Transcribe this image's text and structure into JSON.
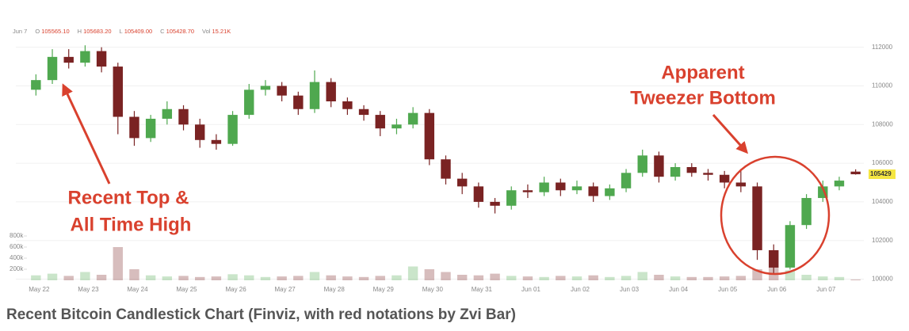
{
  "chart_data": {
    "type": "candlestick",
    "header": [
      {
        "key": "",
        "value": "Jun 7"
      },
      {
        "key": "O",
        "value": "105565.10"
      },
      {
        "key": "H",
        "value": "105683.20"
      },
      {
        "key": "L",
        "value": "105409.00"
      },
      {
        "key": "C",
        "value": "105428.70"
      },
      {
        "key": "Vol",
        "value": "15.21K"
      }
    ],
    "categories": [
      "May 22",
      null,
      null,
      "May 23",
      null,
      null,
      "May 24",
      null,
      null,
      "May 25",
      null,
      null,
      "May 26",
      null,
      null,
      "May 27",
      null,
      null,
      "May 28",
      null,
      null,
      "May 29",
      null,
      null,
      "May 30",
      null,
      null,
      "May 31",
      null,
      null,
      "Jun 01",
      null,
      null,
      "Jun 02",
      null,
      null,
      "Jun 03",
      null,
      null,
      "Jun 04",
      null,
      null,
      "Jun 05",
      null,
      null,
      "Jun 06",
      null,
      null,
      "Jun 07",
      null,
      null
    ],
    "open": [
      109800,
      110300,
      111500,
      111200,
      111800,
      111000,
      108400,
      107300,
      108300,
      108800,
      108000,
      107200,
      107000,
      108500,
      109800,
      110000,
      109500,
      108800,
      110200,
      109200,
      108800,
      108500,
      107800,
      108000,
      108600,
      106200,
      105200,
      104800,
      104000,
      103800,
      104600,
      104500,
      105000,
      104600,
      104800,
      104300,
      104700,
      105500,
      106400,
      105300,
      105800,
      105500,
      105400,
      105000,
      104800,
      101500,
      100600,
      102800,
      104200,
      104800,
      105565.1
    ],
    "high": [
      110600,
      111900,
      111900,
      112100,
      112000,
      111200,
      108700,
      108500,
      109200,
      109000,
      108300,
      107500,
      108700,
      110100,
      110300,
      110200,
      109700,
      110800,
      110400,
      109400,
      109000,
      108700,
      108300,
      108900,
      108800,
      106400,
      105500,
      105000,
      104200,
      104800,
      104900,
      105300,
      105200,
      105100,
      105000,
      104900,
      105700,
      106700,
      106600,
      106000,
      106000,
      105700,
      105600,
      105700,
      105000,
      101800,
      103000,
      104400,
      105100,
      105300,
      105683.2
    ],
    "low": [
      109500,
      110100,
      110900,
      111000,
      110700,
      107500,
      106900,
      107100,
      108000,
      107700,
      106800,
      106700,
      106900,
      108300,
      109500,
      109200,
      108500,
      108600,
      108900,
      108500,
      108200,
      107400,
      107500,
      107800,
      105900,
      104900,
      104400,
      103700,
      103400,
      103600,
      104200,
      104300,
      104300,
      104400,
      104000,
      104100,
      104500,
      105300,
      105000,
      105100,
      105300,
      105100,
      104700,
      104500,
      101000,
      100300,
      100500,
      102600,
      104000,
      104600,
      105409.0
    ],
    "close": [
      110300,
      111500,
      111200,
      111800,
      111000,
      108400,
      107300,
      108300,
      108800,
      108000,
      107200,
      107000,
      108500,
      109800,
      110000,
      109500,
      108800,
      110200,
      109200,
      108800,
      108500,
      107800,
      108000,
      108600,
      106200,
      105200,
      104800,
      104000,
      103800,
      104600,
      104500,
      105000,
      104600,
      104800,
      104300,
      104700,
      105500,
      106400,
      105300,
      105800,
      105500,
      105400,
      105000,
      104800,
      101500,
      100600,
      102800,
      104200,
      104800,
      105100,
      105428.7
    ],
    "volume": [
      90000,
      120000,
      80000,
      150000,
      100000,
      600000,
      200000,
      90000,
      70000,
      80000,
      60000,
      70000,
      110000,
      90000,
      60000,
      70000,
      80000,
      150000,
      90000,
      70000,
      60000,
      80000,
      90000,
      250000,
      200000,
      150000,
      100000,
      90000,
      120000,
      80000,
      70000,
      60000,
      80000,
      70000,
      90000,
      60000,
      80000,
      150000,
      100000,
      70000,
      60000,
      60000,
      70000,
      80000,
      200000,
      250000,
      180000,
      100000,
      70000,
      60000,
      15210
    ],
    "up_color": "#4fa84f",
    "down_color": "#7a2323",
    "ylim": [
      99900,
      112600
    ],
    "yticks": [
      100000,
      102000,
      104000,
      106000,
      108000,
      110000,
      112000
    ],
    "vol_ylim": [
      0,
      800000
    ],
    "vol_ticks": [
      {
        "value": 200000,
        "label": "200k"
      },
      {
        "value": 400000,
        "label": "400k"
      },
      {
        "value": 600000,
        "label": "600k"
      },
      {
        "value": 800000,
        "label": "800k"
      }
    ],
    "current_price": 105429,
    "grid": true,
    "annotations": [
      "Apparent",
      "Tweezer Bottom",
      "Recent Top &",
      "All Time High"
    ],
    "caption": "Recent Bitcoin Candlestick Chart (Finviz, with red notations by Zvi Bar)"
  }
}
